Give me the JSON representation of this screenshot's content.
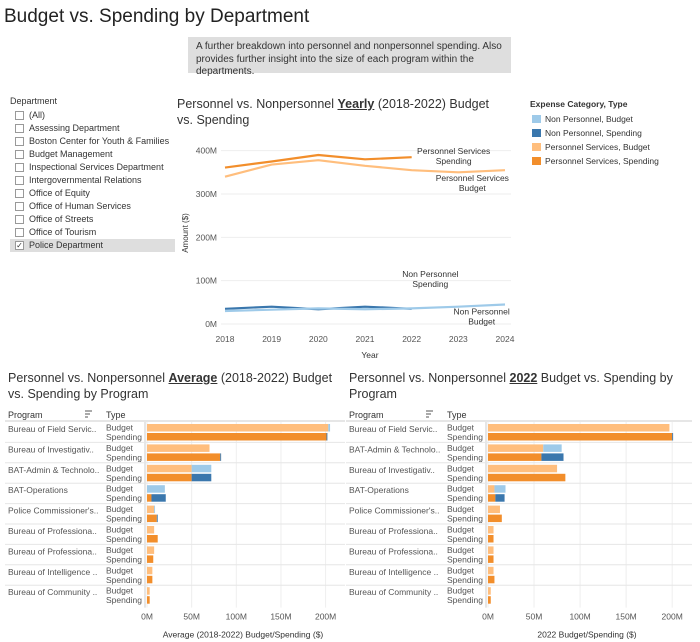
{
  "page_title": "Budget vs. Spending by Department",
  "subtitle": "A further breakdown into personnel and nonpersonnel spending. Also provides further insight into the size of each program within the departments.",
  "filter": {
    "title": "Department",
    "items": [
      {
        "label": "(All)",
        "checked": false
      },
      {
        "label": "Assessing Department",
        "checked": false
      },
      {
        "label": "Boston Center for Youth & Families",
        "checked": false
      },
      {
        "label": "Budget Management",
        "checked": false
      },
      {
        "label": "Inspectional Services Department",
        "checked": false
      },
      {
        "label": "Intergovernmental Relations",
        "checked": false
      },
      {
        "label": "Office of Equity",
        "checked": false
      },
      {
        "label": "Office of Human Services",
        "checked": false
      },
      {
        "label": "Office of Streets",
        "checked": false
      },
      {
        "label": "Office of Tourism",
        "checked": false
      },
      {
        "label": "Police Department",
        "checked": true
      }
    ]
  },
  "legend": {
    "title": "Expense Category, Type",
    "items": [
      {
        "label": "Non Personnel, Budget",
        "color": "#9ecae9"
      },
      {
        "label": "Non Personnel, Spending",
        "color": "#3a77ad"
      },
      {
        "label": "Personnel Services, Budget",
        "color": "#ffbe7d"
      },
      {
        "label": "Personnel Services, Spending",
        "color": "#f28e2b"
      }
    ]
  },
  "line_title": {
    "pre": "Personnel vs. Nonpersonnel ",
    "em": "Yearly",
    "post": " (2018-2022) Budget vs. Spending"
  },
  "bar_left_title": {
    "pre": "Personnel vs. Nonpersonnel ",
    "em": "Average",
    "post": " (2018-2022) Budget vs. Spending by Program"
  },
  "bar_right_title": {
    "pre": "Personnel vs. Nonpersonnel ",
    "em": "2022",
    "post": " Budget vs. Spending by Program"
  },
  "chart_data": [
    {
      "type": "line",
      "xlabel": "Year",
      "ylabel": "Amount ($)",
      "x_ticks": [
        "2018",
        "2019",
        "2020",
        "2021",
        "2022",
        "2023",
        "2024"
      ],
      "y_ticks": [
        "0M",
        "100M",
        "200M",
        "300M",
        "400M"
      ],
      "ylim": [
        0,
        420
      ],
      "xlim": [
        2018,
        2024
      ],
      "annotations": [
        {
          "text": [
            "Personnel Services",
            "Spending"
          ],
          "series": "Personnel Services, Spending"
        },
        {
          "text": [
            "Personnel Services",
            "Budget"
          ],
          "series": "Personnel Services, Budget"
        },
        {
          "text": [
            "Non Personnel",
            "Spending"
          ],
          "series": "Non Personnel, Spending"
        },
        {
          "text": [
            "Non Personnel",
            "Budget"
          ],
          "series": "Non Personnel, Budget"
        }
      ],
      "series": [
        {
          "name": "Personnel Services, Spending",
          "color": "#f28e2b",
          "x": [
            2018,
            2019,
            2020,
            2021,
            2022
          ],
          "values": [
            361,
            375,
            390,
            380,
            385
          ]
        },
        {
          "name": "Personnel Services, Budget",
          "color": "#ffbe7d",
          "x": [
            2018,
            2019,
            2020,
            2021,
            2022,
            2023,
            2024
          ],
          "values": [
            340,
            368,
            378,
            365,
            355,
            350,
            355
          ]
        },
        {
          "name": "Non Personnel, Spending",
          "color": "#3a77ad",
          "x": [
            2018,
            2019,
            2020,
            2021,
            2022
          ],
          "values": [
            35,
            40,
            34,
            40,
            35
          ]
        },
        {
          "name": "Non Personnel, Budget",
          "color": "#9ecae9",
          "x": [
            2018,
            2019,
            2020,
            2021,
            2022,
            2023,
            2024
          ],
          "values": [
            30,
            33,
            36,
            34,
            36,
            40,
            45
          ]
        }
      ]
    },
    {
      "type": "bar",
      "title_key": "bar_left_title",
      "xlabel": "Average (2018-2022) Budget/Spending ($)",
      "x_ticks": [
        "0M",
        "50M",
        "100M",
        "150M",
        "200M"
      ],
      "xlim": [
        0,
        215
      ],
      "header": {
        "program": "Program",
        "type": "Type"
      },
      "programs": [
        {
          "name": "Bureau of Field Servic..",
          "budget": {
            "personnel": 203,
            "nonpersonnel": 2
          },
          "spending": {
            "personnel": 201,
            "nonpersonnel": 1
          }
        },
        {
          "name": "Bureau of Investigativ..",
          "budget": {
            "personnel": 70,
            "nonpersonnel": 0
          },
          "spending": {
            "personnel": 82,
            "nonpersonnel": 1
          }
        },
        {
          "name": "BAT-Admin & Technolo..",
          "budget": {
            "personnel": 50,
            "nonpersonnel": 22
          },
          "spending": {
            "personnel": 50,
            "nonpersonnel": 22
          }
        },
        {
          "name": "BAT-Operations",
          "budget": {
            "personnel": 0,
            "nonpersonnel": 20
          },
          "spending": {
            "personnel": 5,
            "nonpersonnel": 16
          }
        },
        {
          "name": "Police Commissioner's..",
          "budget": {
            "personnel": 8,
            "nonpersonnel": 1
          },
          "spending": {
            "personnel": 11,
            "nonpersonnel": 1
          }
        },
        {
          "name": "Bureau of Professiona..",
          "budget": {
            "personnel": 8,
            "nonpersonnel": 0
          },
          "spending": {
            "personnel": 12,
            "nonpersonnel": 0
          }
        },
        {
          "name": "Bureau of Professiona..",
          "budget": {
            "personnel": 8,
            "nonpersonnel": 0
          },
          "spending": {
            "personnel": 7,
            "nonpersonnel": 0
          }
        },
        {
          "name": "Bureau of Intelligence ..",
          "budget": {
            "personnel": 6,
            "nonpersonnel": 0
          },
          "spending": {
            "personnel": 6,
            "nonpersonnel": 0
          }
        },
        {
          "name": "Bureau of Community ..",
          "budget": {
            "personnel": 3,
            "nonpersonnel": 0
          },
          "spending": {
            "personnel": 3,
            "nonpersonnel": 0
          }
        }
      ]
    },
    {
      "type": "bar",
      "title_key": "bar_right_title",
      "xlabel": "2022 Budget/Spending ($)",
      "x_ticks": [
        "0M",
        "50M",
        "100M",
        "150M",
        "200M"
      ],
      "xlim": [
        0,
        215
      ],
      "header": {
        "program": "Program",
        "type": "Type"
      },
      "programs": [
        {
          "name": "Bureau of Field Servic..",
          "budget": {
            "personnel": 197,
            "nonpersonnel": 0
          },
          "spending": {
            "personnel": 200,
            "nonpersonnel": 1
          }
        },
        {
          "name": "BAT-Admin & Technolo..",
          "budget": {
            "personnel": 60,
            "nonpersonnel": 20
          },
          "spending": {
            "personnel": 58,
            "nonpersonnel": 24
          }
        },
        {
          "name": "Bureau of Investigativ..",
          "budget": {
            "personnel": 75,
            "nonpersonnel": 0
          },
          "spending": {
            "personnel": 84,
            "nonpersonnel": 0
          }
        },
        {
          "name": "BAT-Operations",
          "budget": {
            "personnel": 7,
            "nonpersonnel": 12
          },
          "spending": {
            "personnel": 8,
            "nonpersonnel": 10
          }
        },
        {
          "name": "Police Commissioner's..",
          "budget": {
            "personnel": 13,
            "nonpersonnel": 0
          },
          "spending": {
            "personnel": 15,
            "nonpersonnel": 0
          }
        },
        {
          "name": "Bureau of Professiona..",
          "budget": {
            "personnel": 6,
            "nonpersonnel": 0
          },
          "spending": {
            "personnel": 6,
            "nonpersonnel": 0
          }
        },
        {
          "name": "Bureau of Professiona..",
          "budget": {
            "personnel": 6,
            "nonpersonnel": 0
          },
          "spending": {
            "personnel": 6,
            "nonpersonnel": 0
          }
        },
        {
          "name": "Bureau of Intelligence ..",
          "budget": {
            "personnel": 6,
            "nonpersonnel": 0
          },
          "spending": {
            "personnel": 7,
            "nonpersonnel": 0
          }
        },
        {
          "name": "Bureau of Community ..",
          "budget": {
            "personnel": 3,
            "nonpersonnel": 0
          },
          "spending": {
            "personnel": 3,
            "nonpersonnel": 0
          }
        }
      ]
    }
  ]
}
